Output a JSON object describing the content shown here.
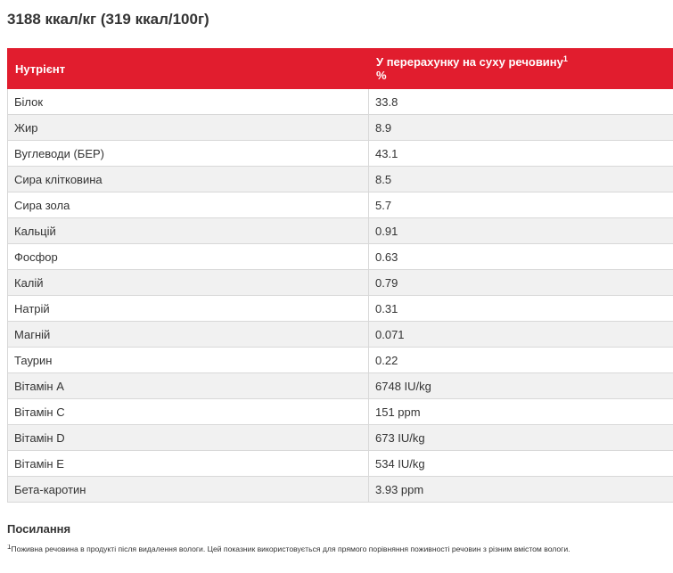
{
  "calories": "3188 ккал/кг (319 ккал/100г)",
  "table": {
    "header": {
      "nutrient": "Нутрієнт",
      "value_line1": "У перерахунку на суху речовину",
      "value_sup": "1",
      "value_line2": "%"
    },
    "rows": [
      {
        "name": "Білок",
        "value": "33.8"
      },
      {
        "name": "Жир",
        "value": "8.9"
      },
      {
        "name": "Вуглеводи (БЕР)",
        "value": "43.1"
      },
      {
        "name": "Сира клітковина",
        "value": "8.5"
      },
      {
        "name": "Сира зола",
        "value": "5.7"
      },
      {
        "name": "Кальцій",
        "value": "0.91"
      },
      {
        "name": "Фосфор",
        "value": "0.63"
      },
      {
        "name": "Калій",
        "value": "0.79"
      },
      {
        "name": "Натрій",
        "value": "0.31"
      },
      {
        "name": "Магній",
        "value": "0.071"
      },
      {
        "name": "Таурин",
        "value": "0.22"
      },
      {
        "name": "Вітамін А",
        "value": "6748 IU/kg"
      },
      {
        "name": "Вітамін С",
        "value": "151 ppm"
      },
      {
        "name": "Вітамін D",
        "value": "673 IU/kg"
      },
      {
        "name": "Вітамін Е",
        "value": "534 IU/kg"
      },
      {
        "name": "Бета-каротин",
        "value": "3.93 ppm"
      }
    ]
  },
  "references": {
    "title": "Посилання",
    "footnote_sup": "1",
    "footnote_text": "Поживна речовина в продукті після видалення вологи. Цей показник використовується для прямого порівняння поживності речовин з різним вмістом вологи."
  }
}
